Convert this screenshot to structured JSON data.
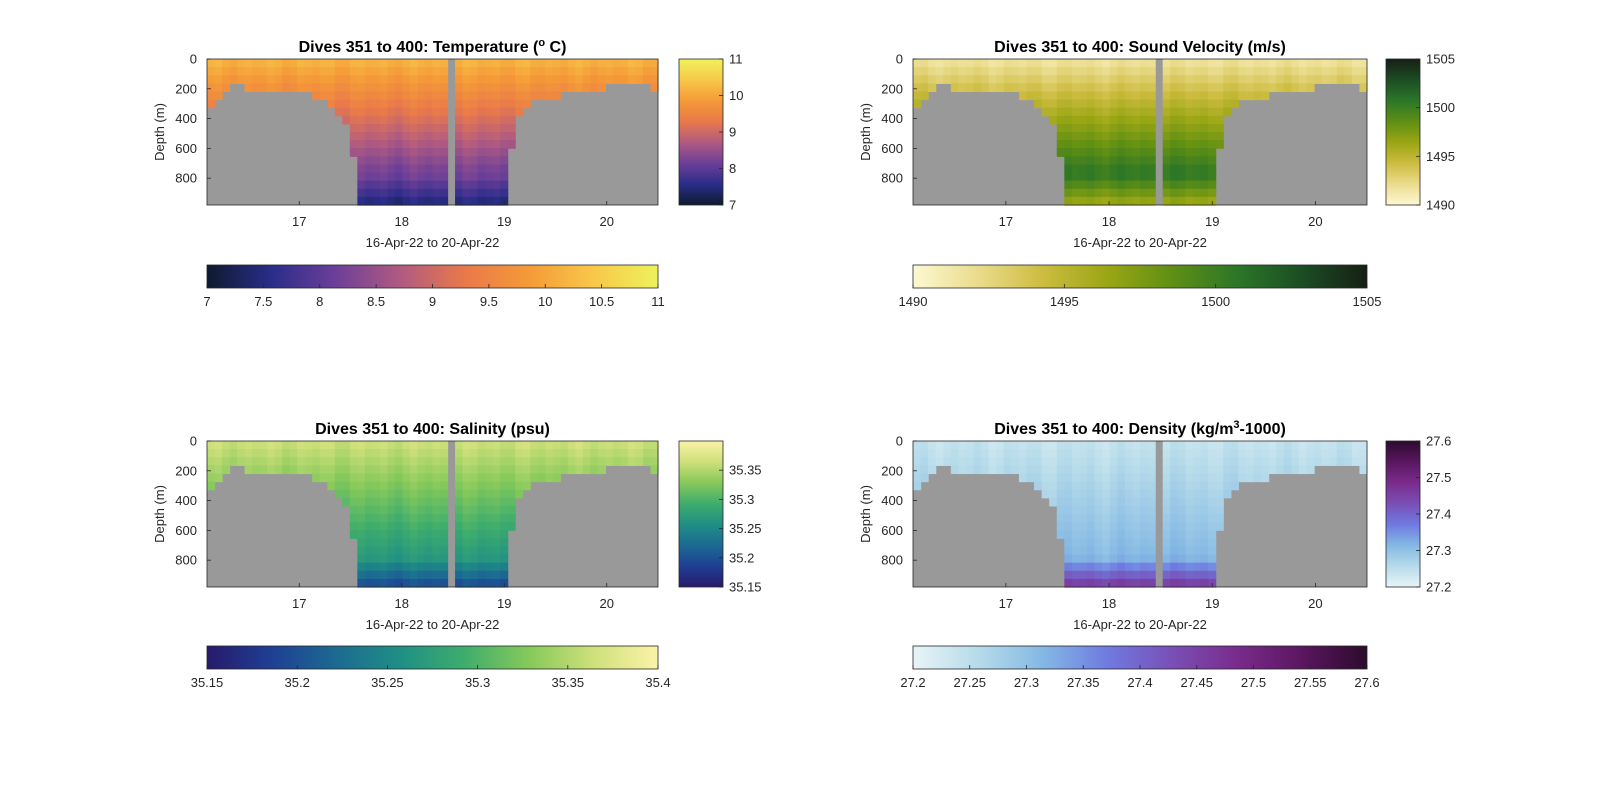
{
  "chart_data": [
    {
      "type": "heatmap",
      "title": "Dives 351 to 400: Temperature (",
      "title_sup": "o",
      "title_end": " C)",
      "xlabel": "16-Apr-22 to 20-Apr-22",
      "ylabel": "Depth (m)",
      "xlim": [
        16.1,
        20.5
      ],
      "ylim": [
        0,
        980
      ],
      "y_reversed": true,
      "xticks": [
        17,
        18,
        19,
        20
      ],
      "yticks": [
        0,
        200,
        400,
        600,
        800
      ],
      "clim": [
        7,
        11
      ],
      "colorbar_ticks": [
        "7",
        "8",
        "9",
        "10",
        "11"
      ],
      "horizontal_colorbar_ticks": [
        "7",
        "7.5",
        "8",
        "8.5",
        "9",
        "9.5",
        "10",
        "10.5",
        "11"
      ],
      "colormap": [
        "#0e1a2e",
        "#2a2d8a",
        "#6c3f99",
        "#b05a82",
        "#e9794a",
        "#f59a38",
        "#f8c84a",
        "#eef25a"
      ],
      "surface_value": 10.2,
      "deep_value": 8.2,
      "bottom_value": 7.4
    },
    {
      "type": "heatmap",
      "title": "Dives 351 to 400: Sound Velocity (m/s)",
      "title_sup": "",
      "title_end": "",
      "xlabel": "16-Apr-22 to 20-Apr-22",
      "ylabel": "Depth (m)",
      "xlim": [
        16.1,
        20.5
      ],
      "ylim": [
        0,
        980
      ],
      "y_reversed": true,
      "xticks": [
        17,
        18,
        19,
        20
      ],
      "yticks": [
        0,
        200,
        400,
        600,
        800
      ],
      "clim": [
        1490,
        1505
      ],
      "colorbar_ticks": [
        "1490",
        "1495",
        "1500",
        "1505"
      ],
      "horizontal_colorbar_ticks": [
        "1490",
        "1495",
        "1500",
        "1505"
      ],
      "colormap": [
        "#fdf8d2",
        "#eadc8c",
        "#cdbc40",
        "#9aa614",
        "#5f8f14",
        "#2c7628",
        "#1b4d24",
        "#161f14"
      ],
      "surface_value": 1491.5,
      "deep_value": 1500.5,
      "bottom_value": 1496
    },
    {
      "type": "heatmap",
      "title": "Dives 351 to 400: Salinity (psu)",
      "title_sup": "",
      "title_end": "",
      "xlabel": "16-Apr-22 to 20-Apr-22",
      "ylabel": "Depth (m)",
      "xlim": [
        16.1,
        20.5
      ],
      "ylim": [
        0,
        980
      ],
      "y_reversed": true,
      "xticks": [
        17,
        18,
        19,
        20
      ],
      "yticks": [
        0,
        200,
        400,
        600,
        800
      ],
      "clim": [
        35.15,
        35.4
      ],
      "colorbar_ticks": [
        "35.15",
        "35.2",
        "35.25",
        "35.3",
        "35.35"
      ],
      "horizontal_colorbar_ticks": [
        "35.15",
        "35.2",
        "35.25",
        "35.3",
        "35.35",
        "35.4"
      ],
      "colormap": [
        "#271a6b",
        "#1f3f93",
        "#1c6a92",
        "#1f8f85",
        "#3fad6c",
        "#86c95a",
        "#cfe07a",
        "#fbf3a8"
      ],
      "surface_value": 35.365,
      "deep_value": 35.27,
      "bottom_value": 35.19
    },
    {
      "type": "heatmap",
      "title": "Dives 351 to 400: Density (kg/m",
      "title_sup": "3",
      "title_end": "-1000)",
      "xlabel": "16-Apr-22 to 20-Apr-22",
      "ylabel": "Depth (m)",
      "xlim": [
        16.1,
        20.5
      ],
      "ylim": [
        0,
        980
      ],
      "y_reversed": true,
      "xticks": [
        17,
        18,
        19,
        20
      ],
      "yticks": [
        0,
        200,
        400,
        600,
        800
      ],
      "clim": [
        27.2,
        27.6
      ],
      "colorbar_ticks": [
        "27.2",
        "27.3",
        "27.4",
        "27.5",
        "27.6"
      ],
      "horizontal_colorbar_ticks": [
        "27.2",
        "27.25",
        "27.3",
        "27.35",
        "27.4",
        "27.45",
        "27.5",
        "27.55",
        "27.6"
      ],
      "colormap": [
        "#e8f4f7",
        "#b6dbea",
        "#84b8e4",
        "#6f7ae0",
        "#7a4fb5",
        "#7a2b8c",
        "#5a1660",
        "#2c0b2c"
      ],
      "surface_value": 27.24,
      "deep_value": 27.31,
      "bottom_value": 27.47
    }
  ],
  "shared": {
    "bottom_profile": {
      "x": [
        16.1,
        16.2,
        16.3,
        16.4,
        16.5,
        16.6,
        16.8,
        17.0,
        17.1,
        17.2,
        17.3,
        17.4,
        17.45,
        17.5,
        17.55,
        17.6
      ],
      "depth": [
        330,
        260,
        210,
        170,
        200,
        205,
        200,
        205,
        230,
        270,
        320,
        380,
        430,
        560,
        700,
        980
      ]
    },
    "bottom_profile_right": {
      "x": [
        19.0,
        19.1,
        19.2,
        19.3,
        19.4,
        19.5,
        19.6,
        19.7,
        19.8,
        19.9,
        20.0,
        20.2,
        20.4,
        20.5
      ],
      "depth": [
        980,
        450,
        330,
        290,
        270,
        250,
        240,
        225,
        210,
        200,
        185,
        185,
        190,
        200
      ]
    },
    "data_gap": [
      18.45,
      18.53
    ],
    "no_data_color": "#999999"
  }
}
